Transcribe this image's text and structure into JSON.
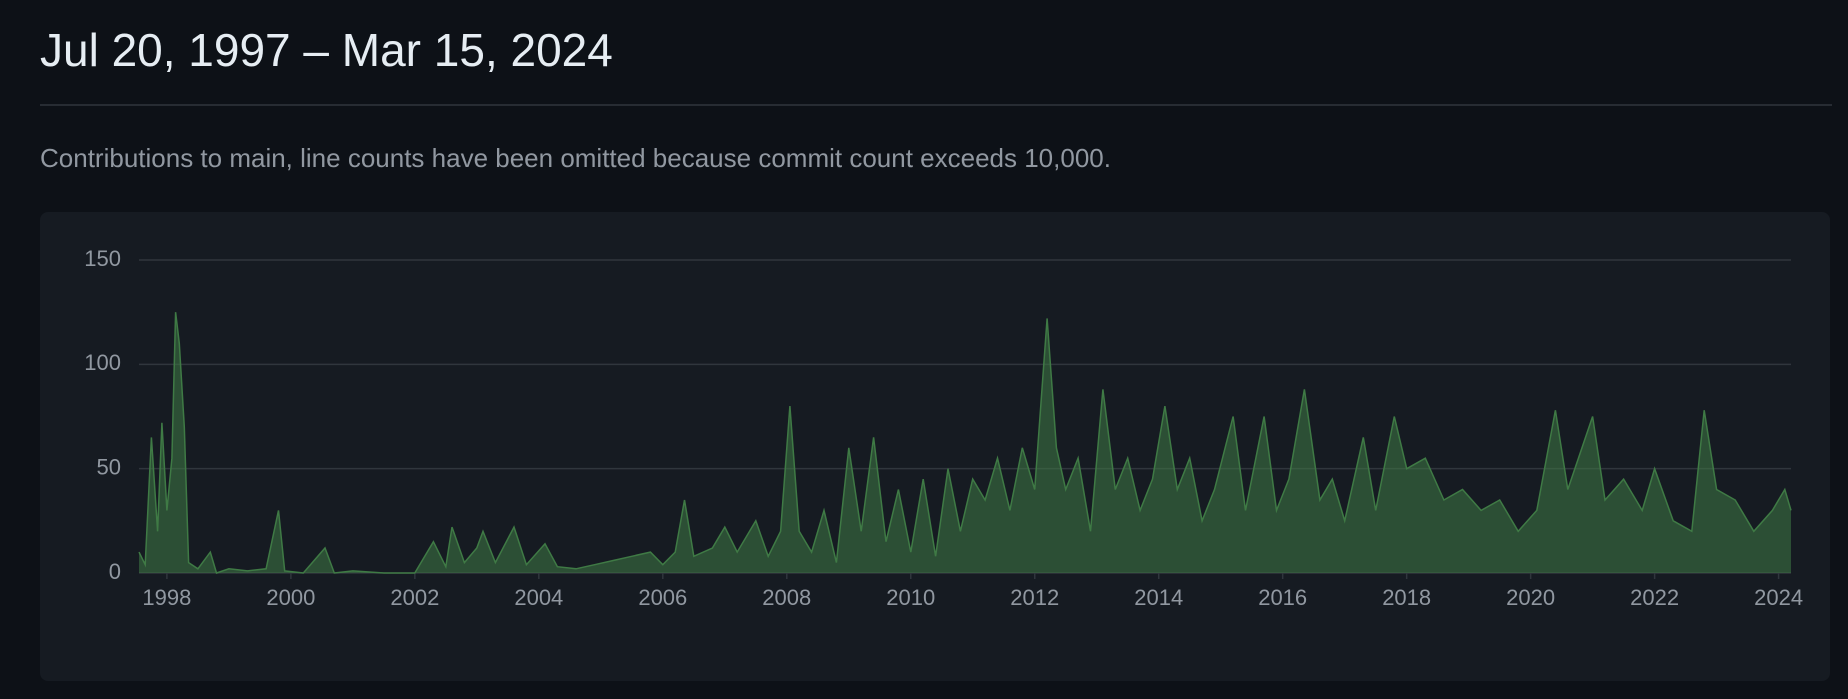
{
  "chart_data": {
    "type": "area",
    "title": "Jul 20, 1997 – Mar 15, 2024",
    "subtitle": "Contributions to main, line counts have been omitted because commit count exceeds 10,000.",
    "color": "#3f7a45",
    "x": [
      1997.55,
      1997.65,
      1997.75,
      1997.85,
      1997.92,
      1998.0,
      1998.08,
      1998.14,
      1998.2,
      1998.28,
      1998.35,
      1998.5,
      1998.7,
      1998.8,
      1999.0,
      1999.3,
      1999.6,
      1999.8,
      1999.9,
      2000.2,
      2000.55,
      2000.7,
      2001.0,
      2001.5,
      2002.0,
      2002.3,
      2002.5,
      2002.6,
      2002.8,
      2003.0,
      2003.1,
      2003.3,
      2003.6,
      2003.8,
      2004.1,
      2004.3,
      2004.6,
      2004.9,
      2005.2,
      2005.5,
      2005.8,
      2006.0,
      2006.2,
      2006.35,
      2006.5,
      2006.8,
      2007.0,
      2007.2,
      2007.5,
      2007.7,
      2007.9,
      2008.05,
      2008.2,
      2008.4,
      2008.6,
      2008.8,
      2009.0,
      2009.2,
      2009.4,
      2009.6,
      2009.8,
      2010.0,
      2010.2,
      2010.4,
      2010.6,
      2010.8,
      2011.0,
      2011.2,
      2011.4,
      2011.6,
      2011.8,
      2012.0,
      2012.2,
      2012.35,
      2012.5,
      2012.7,
      2012.9,
      2013.1,
      2013.3,
      2013.5,
      2013.7,
      2013.9,
      2014.1,
      2014.3,
      2014.5,
      2014.7,
      2014.9,
      2015.2,
      2015.4,
      2015.7,
      2015.9,
      2016.1,
      2016.35,
      2016.6,
      2016.8,
      2017.0,
      2017.3,
      2017.5,
      2017.8,
      2018.0,
      2018.3,
      2018.6,
      2018.9,
      2019.2,
      2019.5,
      2019.8,
      2020.1,
      2020.4,
      2020.6,
      2021.0,
      2021.2,
      2021.5,
      2021.8,
      2022.0,
      2022.3,
      2022.6,
      2022.8,
      2023.0,
      2023.3,
      2023.6,
      2023.9,
      2024.1,
      2024.2
    ],
    "values": [
      10,
      4,
      65,
      20,
      72,
      30,
      55,
      125,
      110,
      70,
      5,
      2,
      10,
      0,
      2,
      1,
      2,
      30,
      1,
      0,
      12,
      0,
      1,
      0,
      0,
      15,
      3,
      22,
      5,
      12,
      20,
      5,
      22,
      4,
      14,
      3,
      2,
      4,
      6,
      8,
      10,
      4,
      10,
      35,
      8,
      12,
      22,
      10,
      25,
      8,
      20,
      80,
      20,
      10,
      30,
      5,
      60,
      20,
      65,
      15,
      40,
      10,
      45,
      8,
      50,
      20,
      45,
      35,
      55,
      30,
      60,
      40,
      122,
      60,
      40,
      55,
      20,
      88,
      40,
      55,
      30,
      45,
      80,
      40,
      55,
      25,
      40,
      75,
      30,
      75,
      30,
      45,
      88,
      35,
      45,
      25,
      65,
      30,
      75,
      50,
      55,
      35,
      40,
      30,
      35,
      20,
      30,
      78,
      40,
      75,
      35,
      45,
      30,
      50,
      25,
      20,
      78,
      40,
      35,
      20,
      30,
      40,
      30
    ],
    "xlim": [
      1997.55,
      2024.2
    ],
    "xticks": [
      1998,
      2000,
      2002,
      2004,
      2006,
      2008,
      2010,
      2012,
      2014,
      2016,
      2018,
      2020,
      2022,
      2024
    ],
    "ylim": [
      0,
      150
    ],
    "yticks": [
      0,
      50,
      100,
      150
    ],
    "grid": true
  }
}
